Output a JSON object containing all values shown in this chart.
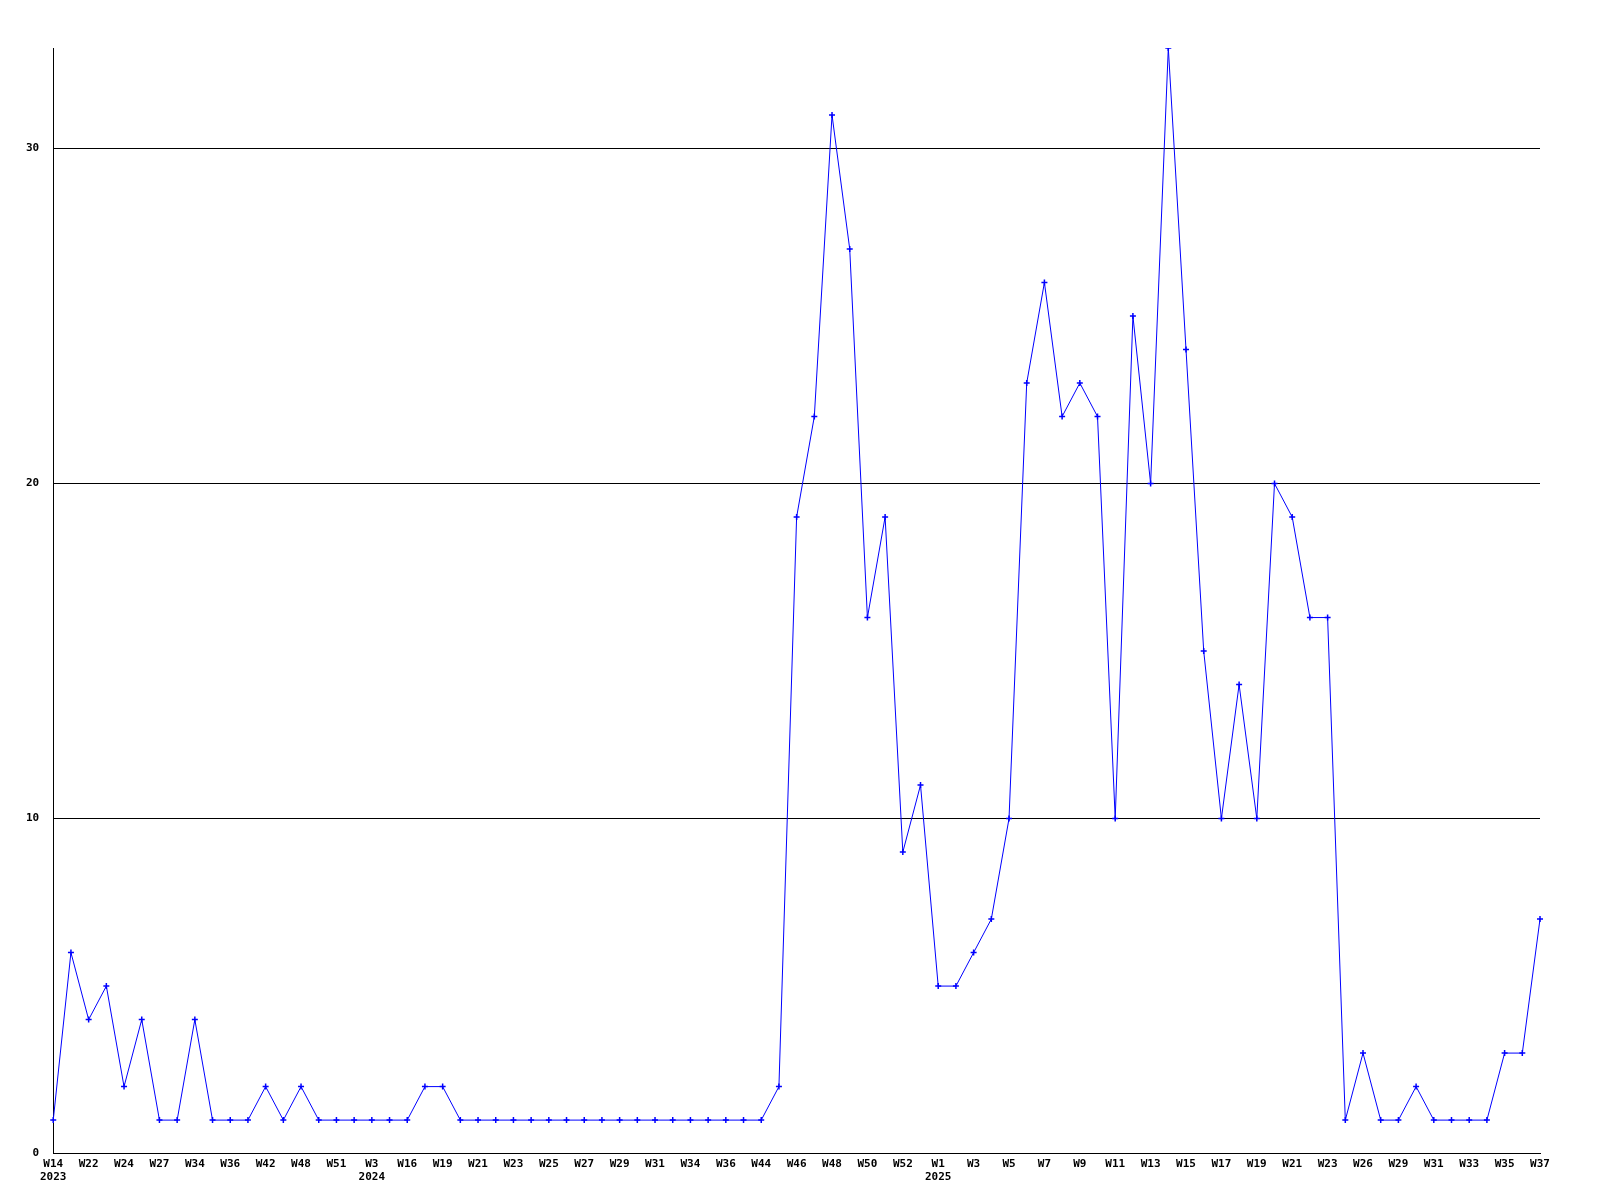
{
  "chart_data": {
    "type": "line",
    "categories": [
      "W14\n2023",
      null,
      "W22",
      null,
      "W24",
      null,
      "W27",
      null,
      "W34",
      null,
      "W36",
      null,
      "W42",
      null,
      "W48",
      null,
      "W51",
      null,
      "W3\n2024",
      null,
      "W16",
      null,
      "W19",
      null,
      "W21",
      null,
      "W23",
      null,
      "W25",
      null,
      "W27",
      null,
      "W29",
      null,
      "W31",
      null,
      "W34",
      null,
      "W36",
      null,
      "W44",
      null,
      "W46",
      null,
      "W48",
      null,
      "W50",
      null,
      "W52",
      null,
      "W1\n2025",
      null,
      "W3",
      null,
      "W5",
      null,
      "W7",
      null,
      "W9",
      null,
      "W11",
      null,
      "W13",
      null,
      "W15",
      null,
      "W17",
      null,
      "W19",
      null,
      "W21",
      null,
      "W23",
      null,
      "W26",
      null,
      "W29",
      null,
      "W31",
      null,
      "W33",
      null,
      "W35",
      null,
      "W37"
    ],
    "series": [
      {
        "color": "#0000ff",
        "values": [
          1,
          6,
          4,
          5,
          2,
          4,
          1,
          1,
          4,
          1,
          1,
          1,
          2,
          1,
          2,
          1,
          1,
          1,
          1,
          1,
          1,
          2,
          2,
          1,
          1,
          1,
          1,
          1,
          1,
          1,
          1,
          1,
          1,
          1,
          1,
          1,
          1,
          1,
          1,
          1,
          1,
          2,
          19,
          22,
          31,
          27,
          16,
          19,
          9,
          11,
          5,
          5,
          6,
          7,
          10,
          23,
          26,
          22,
          23,
          22,
          10,
          25,
          20,
          33,
          24,
          15,
          10,
          14,
          10,
          20,
          19,
          16,
          16,
          1,
          3,
          1,
          1,
          2,
          1,
          1,
          1,
          1,
          3,
          3,
          7
        ]
      }
    ],
    "ylim": [
      0,
      33
    ],
    "yticks": [
      0,
      10,
      20,
      30
    ],
    "grid": "y",
    "marker": "cross",
    "line_style": "solid",
    "legend": false
  }
}
